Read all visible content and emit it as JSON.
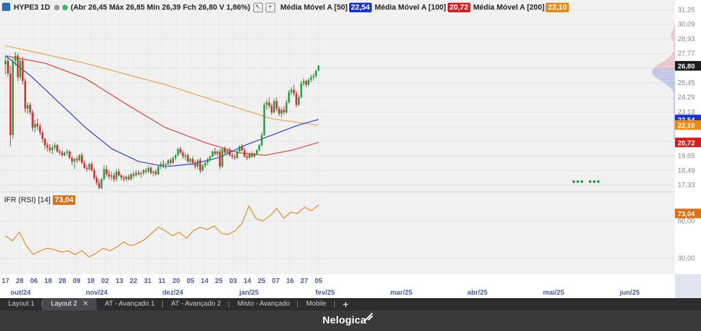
{
  "legend": {
    "symbol": "HYPE3 1D",
    "ohlc_text": "(Abr 26,45 Máx 26,85 Mín 26,39 Fch 26,80 V 1,86%)",
    "ma50_label": "Média Móvel A [50]",
    "ma50_value": "22,54",
    "ma100_label": "Média Móvel A [100]",
    "ma100_value": "20,72",
    "ma200_label": "Média Móvel A [200]",
    "ma200_value": "22,10"
  },
  "rsi": {
    "label": "IFR (RSI) [14]",
    "value": "73,04"
  },
  "colors": {
    "up": "#1f9e3b",
    "down": "#d62a2a",
    "ma50": "#2b3bc4",
    "ma100": "#d8403a",
    "ma200": "#e8a24a",
    "rsi": "#e08a2b",
    "price_tag": "#1d1d1d",
    "ma50_tag": "#1c33c9",
    "ma100_tag": "#d21f1f",
    "ma200_tag": "#e88a13"
  },
  "chart_data": {
    "type": "candlestick",
    "y_ticks": [
      "31,25",
      "30,09",
      "28,93",
      "27,77",
      "26,61",
      "25,45",
      "24,29",
      "23,13",
      "21,97",
      "20,81",
      "19,65",
      "18,49",
      "17,33"
    ],
    "rsi_ticks": [
      "60,00",
      "30,00"
    ],
    "price_tag": "26,80",
    "ma50_tag": "22,54",
    "ma100_tag": "20,72",
    "ma200_tag": "22,10",
    "rsi_tag": "73,04",
    "x_day_labels": [
      "17",
      "28",
      "06",
      "18",
      "28",
      "09",
      "18",
      "02",
      "13",
      "22",
      "31",
      "11",
      "20",
      "05",
      "14",
      "25",
      "03",
      "14",
      "25",
      "07",
      "16",
      "27",
      "05"
    ],
    "x_month_labels": [
      "out/24",
      "nov/24",
      "dez/24",
      "jan/25",
      "fev/25",
      "mar/25",
      "abr/25",
      "mai/25",
      "jun/25"
    ],
    "candles": [
      [
        26.9,
        27.6,
        26.1,
        27.2
      ],
      [
        27.2,
        27.5,
        25.9,
        26.2
      ],
      [
        26.2,
        26.8,
        20.4,
        21.3
      ],
      [
        21.3,
        27.4,
        21.0,
        27.2
      ],
      [
        27.2,
        27.9,
        26.8,
        27.6
      ],
      [
        27.6,
        27.8,
        25.6,
        25.9
      ],
      [
        25.9,
        27.4,
        25.7,
        27.2
      ],
      [
        27.2,
        27.5,
        25.3,
        25.6
      ],
      [
        25.6,
        25.8,
        23.1,
        23.4
      ],
      [
        23.4,
        23.9,
        23.0,
        23.7
      ],
      [
        23.7,
        23.9,
        22.9,
        23.1
      ],
      [
        23.1,
        23.3,
        21.6,
        21.9
      ],
      [
        21.9,
        22.5,
        21.5,
        22.2
      ],
      [
        22.2,
        22.6,
        21.7,
        22.0
      ],
      [
        22.0,
        22.2,
        21.3,
        21.5
      ],
      [
        21.5,
        21.7,
        20.7,
        21.0
      ],
      [
        21.0,
        21.1,
        20.2,
        20.5
      ],
      [
        20.5,
        20.7,
        20.0,
        20.3
      ],
      [
        20.3,
        20.6,
        19.9,
        20.1
      ],
      [
        20.1,
        20.5,
        19.8,
        20.3
      ],
      [
        20.3,
        20.7,
        20.1,
        20.5
      ],
      [
        20.5,
        20.6,
        19.9,
        20.0
      ],
      [
        20.0,
        20.2,
        19.7,
        19.9
      ],
      [
        19.9,
        20.1,
        19.6,
        19.7
      ],
      [
        19.7,
        20.0,
        19.6,
        19.9
      ],
      [
        19.9,
        20.2,
        19.7,
        20.0
      ],
      [
        20.0,
        20.1,
        19.4,
        19.5
      ],
      [
        19.5,
        19.6,
        18.9,
        19.2
      ],
      [
        19.2,
        19.5,
        18.6,
        19.4
      ],
      [
        19.4,
        19.6,
        19.1,
        19.3
      ],
      [
        19.3,
        19.8,
        19.2,
        19.7
      ],
      [
        19.7,
        19.9,
        19.0,
        19.1
      ],
      [
        19.1,
        19.3,
        18.6,
        18.7
      ],
      [
        18.7,
        18.9,
        18.4,
        18.6
      ],
      [
        18.6,
        19.1,
        18.5,
        19.0
      ],
      [
        19.0,
        19.2,
        18.4,
        18.5
      ],
      [
        18.5,
        18.7,
        17.7,
        17.9
      ],
      [
        17.9,
        18.1,
        17.3,
        17.5
      ],
      [
        17.5,
        17.8,
        17.0,
        17.1
      ],
      [
        17.1,
        17.9,
        17.0,
        17.8
      ],
      [
        17.8,
        18.9,
        17.7,
        18.6
      ],
      [
        18.6,
        18.9,
        18.0,
        18.2
      ],
      [
        18.2,
        18.5,
        17.8,
        18.0
      ],
      [
        18.0,
        18.4,
        17.7,
        18.1
      ],
      [
        18.1,
        18.3,
        17.6,
        17.8
      ],
      [
        17.8,
        18.6,
        17.6,
        18.4
      ],
      [
        18.4,
        18.6,
        18.0,
        18.1
      ],
      [
        18.1,
        18.2,
        17.7,
        17.9
      ],
      [
        17.9,
        18.1,
        17.6,
        17.8
      ],
      [
        17.8,
        18.1,
        17.6,
        18.0
      ],
      [
        18.0,
        18.2,
        17.7,
        17.8
      ],
      [
        17.8,
        18.3,
        17.7,
        18.2
      ],
      [
        18.2,
        18.4,
        17.9,
        18.1
      ],
      [
        18.1,
        18.5,
        18.0,
        18.3
      ],
      [
        18.3,
        18.5,
        18.1,
        18.2
      ],
      [
        18.2,
        18.4,
        17.9,
        18.3
      ],
      [
        18.3,
        18.6,
        18.1,
        18.5
      ],
      [
        18.5,
        18.7,
        18.2,
        18.4
      ],
      [
        18.4,
        18.9,
        18.3,
        18.7
      ],
      [
        18.7,
        18.8,
        18.2,
        18.3
      ],
      [
        18.3,
        18.5,
        18.0,
        18.4
      ],
      [
        18.4,
        18.6,
        18.1,
        18.2
      ],
      [
        18.2,
        18.9,
        18.1,
        18.8
      ],
      [
        18.8,
        19.2,
        18.6,
        19.0
      ],
      [
        19.0,
        19.3,
        18.7,
        18.9
      ],
      [
        18.9,
        19.1,
        18.6,
        19.0
      ],
      [
        19.0,
        19.4,
        18.9,
        19.3
      ],
      [
        19.3,
        19.5,
        18.9,
        19.1
      ],
      [
        19.1,
        19.6,
        19.0,
        19.5
      ],
      [
        19.5,
        19.8,
        19.3,
        19.7
      ],
      [
        19.7,
        20.3,
        19.6,
        20.2
      ],
      [
        20.2,
        20.4,
        19.8,
        19.9
      ],
      [
        19.9,
        20.1,
        19.4,
        19.6
      ],
      [
        19.6,
        19.9,
        19.3,
        19.7
      ],
      [
        19.7,
        19.8,
        19.1,
        19.2
      ],
      [
        19.2,
        19.5,
        19.0,
        19.4
      ],
      [
        19.4,
        19.6,
        18.9,
        19.1
      ],
      [
        19.1,
        19.3,
        18.6,
        18.8
      ],
      [
        18.8,
        19.4,
        18.6,
        19.3
      ],
      [
        19.3,
        19.5,
        18.3,
        18.5
      ],
      [
        18.5,
        19.0,
        18.4,
        18.9
      ],
      [
        18.9,
        19.2,
        18.7,
        19.1
      ],
      [
        19.1,
        19.5,
        18.9,
        19.4
      ],
      [
        19.4,
        19.7,
        19.2,
        19.6
      ],
      [
        19.6,
        20.1,
        19.5,
        20.0
      ],
      [
        20.0,
        20.3,
        19.7,
        19.8
      ],
      [
        19.8,
        20.1,
        19.6,
        20.0
      ],
      [
        20.0,
        20.2,
        18.6,
        18.8
      ],
      [
        18.8,
        20.3,
        18.7,
        20.2
      ],
      [
        20.2,
        20.4,
        19.8,
        19.9
      ],
      [
        19.9,
        20.2,
        19.7,
        20.1
      ],
      [
        20.1,
        20.3,
        19.6,
        19.7
      ],
      [
        19.7,
        19.9,
        19.4,
        19.6
      ],
      [
        19.6,
        19.8,
        19.3,
        19.5
      ],
      [
        19.5,
        20.1,
        19.4,
        20.0
      ],
      [
        20.0,
        20.5,
        19.9,
        20.4
      ],
      [
        20.4,
        20.6,
        20.0,
        20.1
      ],
      [
        20.1,
        20.3,
        19.5,
        19.6
      ],
      [
        19.6,
        19.8,
        19.3,
        19.5
      ],
      [
        19.5,
        19.9,
        19.4,
        19.8
      ],
      [
        19.8,
        20.0,
        19.5,
        19.6
      ],
      [
        19.6,
        19.9,
        19.5,
        19.8
      ],
      [
        19.8,
        20.2,
        19.7,
        20.1
      ],
      [
        20.1,
        20.6,
        20.0,
        20.5
      ],
      [
        20.5,
        21.5,
        20.4,
        21.3
      ],
      [
        21.3,
        23.9,
        21.2,
        23.7
      ],
      [
        23.7,
        24.1,
        23.3,
        23.9
      ],
      [
        23.9,
        24.3,
        23.4,
        23.6
      ],
      [
        23.6,
        23.8,
        22.9,
        23.1
      ],
      [
        23.1,
        24.2,
        23.0,
        24.0
      ],
      [
        24.0,
        24.3,
        23.2,
        23.4
      ],
      [
        23.4,
        23.6,
        22.8,
        23.0
      ],
      [
        23.0,
        23.5,
        22.7,
        23.3
      ],
      [
        23.3,
        23.6,
        22.9,
        23.1
      ],
      [
        23.1,
        24.1,
        23.0,
        23.9
      ],
      [
        23.9,
        24.9,
        23.8,
        24.7
      ],
      [
        24.7,
        25.1,
        24.5,
        24.9
      ],
      [
        24.9,
        25.3,
        24.4,
        24.6
      ],
      [
        24.6,
        24.8,
        23.5,
        23.7
      ],
      [
        23.7,
        24.5,
        23.6,
        24.3
      ],
      [
        24.3,
        25.6,
        24.2,
        25.4
      ],
      [
        25.4,
        25.8,
        25.2,
        25.6
      ],
      [
        25.6,
        25.7,
        25.1,
        25.3
      ],
      [
        25.3,
        25.8,
        25.2,
        25.7
      ],
      [
        25.7,
        26.1,
        25.5,
        25.9
      ],
      [
        25.9,
        26.2,
        25.6,
        26.0
      ],
      [
        26.0,
        26.5,
        25.8,
        26.4
      ],
      [
        26.4,
        26.85,
        26.39,
        26.8
      ]
    ],
    "ma50": [
      [
        0,
        27.6
      ],
      [
        20,
        25.9
      ],
      [
        40,
        23.9
      ],
      [
        60,
        21.9
      ],
      [
        80,
        20.2
      ],
      [
        100,
        19.2
      ],
      [
        120,
        18.8
      ],
      [
        140,
        19.0
      ],
      [
        160,
        19.5
      ],
      [
        180,
        20.5
      ],
      [
        200,
        21.3
      ],
      [
        220,
        22.1
      ],
      [
        235,
        22.54
      ]
    ],
    "ma100": [
      [
        0,
        27.6
      ],
      [
        30,
        27.0
      ],
      [
        60,
        25.8
      ],
      [
        90,
        23.8
      ],
      [
        120,
        21.9
      ],
      [
        150,
        20.7
      ],
      [
        175,
        19.9
      ],
      [
        195,
        19.7
      ],
      [
        215,
        20.1
      ],
      [
        235,
        20.72
      ]
    ],
    "ma200": [
      [
        0,
        28.4
      ],
      [
        60,
        27.0
      ],
      [
        120,
        25.3
      ],
      [
        170,
        23.6
      ],
      [
        200,
        22.6
      ],
      [
        220,
        22.3
      ],
      [
        235,
        22.1
      ]
    ],
    "rsi": [
      [
        0,
        48
      ],
      [
        6,
        44
      ],
      [
        12,
        51
      ],
      [
        18,
        40
      ],
      [
        24,
        33
      ],
      [
        30,
        36
      ],
      [
        36,
        38
      ],
      [
        42,
        37
      ],
      [
        48,
        35
      ],
      [
        54,
        36
      ],
      [
        60,
        33
      ],
      [
        66,
        36
      ],
      [
        72,
        31
      ],
      [
        78,
        34
      ],
      [
        84,
        38
      ],
      [
        90,
        36
      ],
      [
        96,
        39
      ],
      [
        102,
        43
      ],
      [
        108,
        40
      ],
      [
        114,
        42
      ],
      [
        120,
        45
      ],
      [
        126,
        50
      ],
      [
        132,
        55
      ],
      [
        138,
        52
      ],
      [
        144,
        48
      ],
      [
        150,
        51
      ],
      [
        156,
        46
      ],
      [
        162,
        52
      ],
      [
        168,
        55
      ],
      [
        174,
        53
      ],
      [
        180,
        56
      ],
      [
        186,
        50
      ],
      [
        192,
        49
      ],
      [
        198,
        52
      ],
      [
        204,
        58
      ],
      [
        210,
        72
      ],
      [
        216,
        62
      ],
      [
        222,
        60
      ],
      [
        228,
        64
      ],
      [
        234,
        70
      ],
      [
        240,
        62
      ],
      [
        246,
        67
      ],
      [
        252,
        66
      ],
      [
        258,
        71
      ],
      [
        264,
        68
      ],
      [
        270,
        73
      ]
    ]
  },
  "tabs": [
    {
      "label": "Layout 1"
    },
    {
      "label": "Layout 2",
      "active": true,
      "close": "✕"
    },
    {
      "label": "AT - Avançado 1"
    },
    {
      "label": "AT - Avançado 2"
    },
    {
      "label": "Misto - Avançado"
    },
    {
      "label": "Mobile"
    }
  ],
  "tab_plus": "+",
  "brand": "Nelogica"
}
